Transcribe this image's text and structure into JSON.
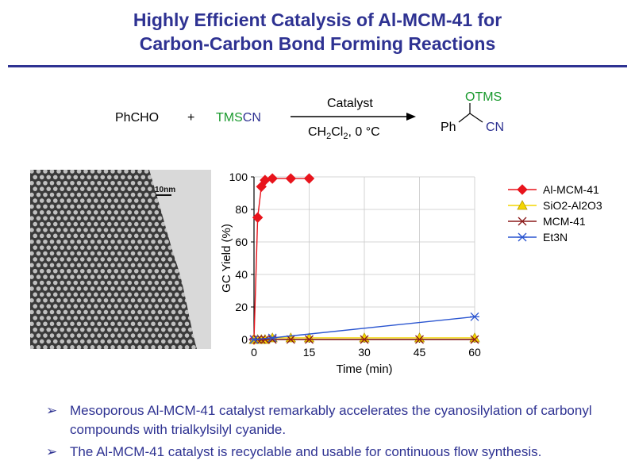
{
  "title": {
    "line1": "Highly Efficient Catalysis of Al-MCM-41 for",
    "line2": "Carbon-Carbon Bond Forming Reactions"
  },
  "reaction": {
    "reactant1": "PhCHO",
    "plus": "+",
    "reactant2_prefix": "TMS",
    "reactant2_suffix": "CN",
    "catalyst": "Catalyst",
    "conditions": "CH2Cl2, 0 °C",
    "product_otms": "OTMS",
    "product_ph": "Ph",
    "product_cn": "CN"
  },
  "tem_image": {
    "scale_label": "10nm"
  },
  "chart_data": {
    "type": "scatter",
    "xlabel": "Time (min)",
    "ylabel": "GC Yield (%)",
    "xlim": [
      0,
      60
    ],
    "ylim": [
      0,
      100
    ],
    "xticks": [
      0,
      15,
      30,
      45,
      60
    ],
    "yticks": [
      0,
      20,
      40,
      60,
      80,
      100
    ],
    "legend": "right",
    "series": [
      {
        "name": "Al-MCM-41",
        "color": "#e8141c",
        "marker": "diamond",
        "x": [
          0,
          1,
          2,
          3,
          5,
          10,
          15
        ],
        "y": [
          0,
          75,
          94,
          98,
          99,
          99,
          99
        ]
      },
      {
        "name": "SiO2-Al2O3",
        "color": "#f3d500",
        "marker": "triangle",
        "x": [
          0,
          1,
          2,
          3,
          5,
          10,
          15,
          30,
          45,
          60
        ],
        "y": [
          0,
          0,
          0,
          0,
          1,
          1,
          1,
          1,
          1,
          1
        ]
      },
      {
        "name": "MCM-41",
        "color": "#8b1a1a",
        "marker": "x",
        "x": [
          0,
          1,
          2,
          3,
          5,
          10,
          15,
          30,
          45,
          60
        ],
        "y": [
          0,
          0,
          0,
          0,
          0,
          0,
          0,
          0,
          0,
          0
        ]
      },
      {
        "name": "Et3N",
        "color": "#2a55d0",
        "marker": "asterisk",
        "x": [
          0,
          5,
          60
        ],
        "y": [
          0,
          1,
          14
        ]
      }
    ]
  },
  "bullets": [
    "Mesoporous Al-MCM-41 catalyst remarkably accelerates the cyanosilylation of carbonyl compounds with trialkylsilyl cyanide.",
    "The Al-MCM-41 catalyst is recyclable and usable for continuous flow synthesis."
  ],
  "bullet_arrow": "➢"
}
